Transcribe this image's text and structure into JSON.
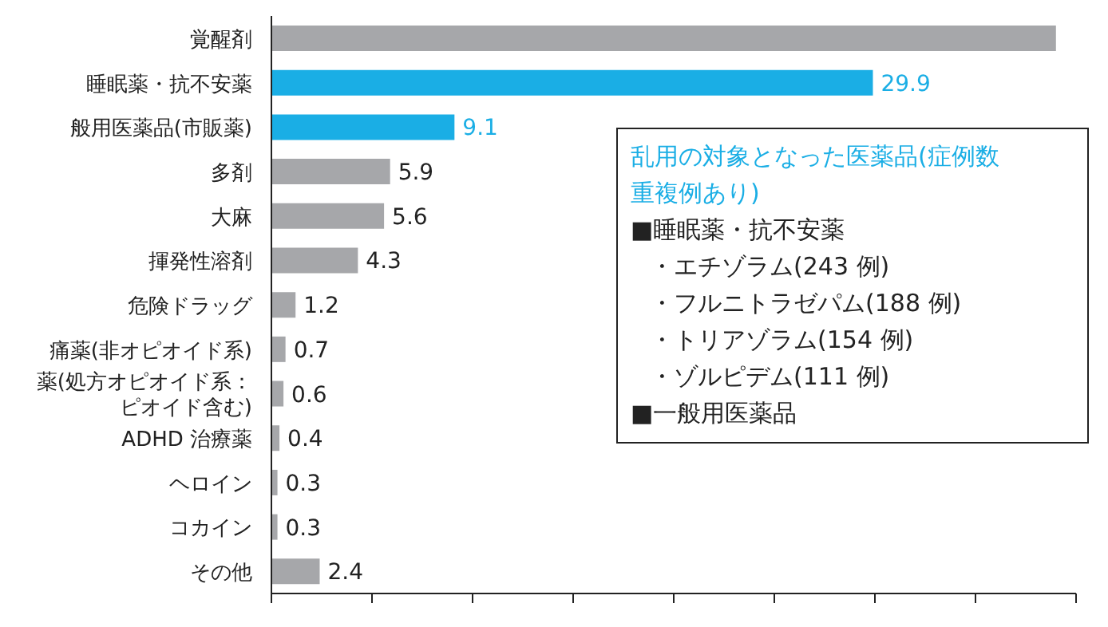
{
  "chart_data": {
    "type": "bar",
    "orientation": "horizontal",
    "categories": [
      "覚醒剤",
      "睡眠薬・抗不安薬",
      "般用医薬品(市販薬)",
      "多剤",
      "大麻",
      "揮発性溶剤",
      "危険ドラッグ",
      "痛薬(非オピオイド系)",
      "薬(処方オピオイド系：ピオイド含む)",
      "ADHD 治療薬",
      "ヘロイン",
      "コカイン",
      "その他"
    ],
    "values": [
      39.0,
      29.9,
      9.1,
      5.9,
      5.6,
      4.3,
      1.2,
      0.7,
      0.6,
      0.4,
      0.3,
      0.3,
      2.4
    ],
    "value_labels": [
      null,
      "29.9",
      "9.1",
      "5.9",
      "5.6",
      "4.3",
      "1.2",
      "0.7",
      "0.6",
      "0.4",
      "0.3",
      "0.3",
      "2.4"
    ],
    "colors": [
      "#a6a7aa",
      "#1aaee5",
      "#1aaee5",
      "#a6a7aa",
      "#a6a7aa",
      "#a6a7aa",
      "#a6a7aa",
      "#a6a7aa",
      "#a6a7aa",
      "#a6a7aa",
      "#a6a7aa",
      "#a6a7aa",
      "#a6a7aa"
    ],
    "xlim": [
      0,
      40
    ],
    "xticks": [
      {
        "value": 0,
        "label": null
      },
      {
        "value": 5,
        "label": null
      },
      {
        "value": 10,
        "label": null
      },
      {
        "value": 15,
        "label": null
      },
      {
        "value": 20,
        "label": null
      },
      {
        "value": 25,
        "label": null
      },
      {
        "value": 30,
        "label": null
      },
      {
        "value": 35,
        "label": null
      },
      {
        "value": 40,
        "label": null
      }
    ],
    "tick_labels": "y",
    "grid": false,
    "legend": false,
    "annotations": [
      "乱用の対象となった医薬品(症例数",
      "重複例あり)",
      "■睡眠薬・抗不安薬",
      "・エチゾラム(243 例)",
      "・フルニトラゼパム(188 例)",
      "・トリアゾラム(154 例)",
      "・ゾルピデム(111 例)",
      "■一般用医薬品"
    ]
  }
}
